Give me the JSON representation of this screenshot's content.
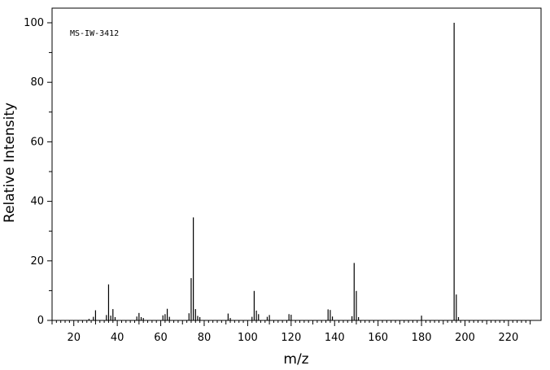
{
  "chart_data": {
    "type": "bar",
    "annotation": "MS-IW-3412",
    "xlabel": "m/z",
    "ylabel": "Relative Intensity",
    "xlim": [
      10,
      235
    ],
    "ylim": [
      0,
      100
    ],
    "x_ticks": [
      20,
      40,
      60,
      80,
      100,
      120,
      140,
      160,
      180,
      200,
      220
    ],
    "y_ticks": [
      0,
      20,
      40,
      60,
      80,
      100
    ],
    "grid": false,
    "series": [
      {
        "x": [
          27,
          29,
          30,
          35,
          36,
          37,
          38,
          39,
          49,
          50,
          51,
          52,
          61,
          62,
          63,
          64,
          73,
          74,
          75,
          76,
          77,
          78,
          91,
          92,
          102,
          103,
          104,
          105,
          109,
          110,
          119,
          120,
          137,
          138,
          139,
          148,
          149,
          150,
          151,
          180,
          195,
          196,
          197
        ],
        "values": [
          0.5,
          1.2,
          3.4,
          1.8,
          12.1,
          1.6,
          3.8,
          1.1,
          1.3,
          2.5,
          1.1,
          0.8,
          1.7,
          2.1,
          3.9,
          1.2,
          2.4,
          14.2,
          34.6,
          3.8,
          1.5,
          1.1,
          2.3,
          0.8,
          1.2,
          9.9,
          3.3,
          2.1,
          1.2,
          1.8,
          2.1,
          1.9,
          3.7,
          3.5,
          1.3,
          1.4,
          19.3,
          9.9,
          1.1,
          1.6,
          100,
          8.7,
          1.1
        ]
      }
    ]
  }
}
